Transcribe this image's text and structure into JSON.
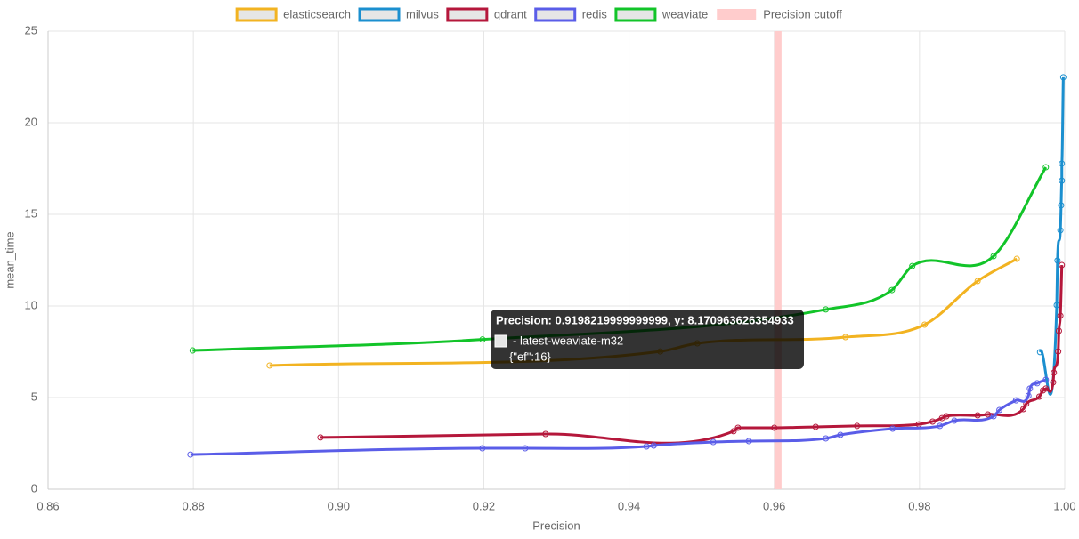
{
  "chart_data": {
    "type": "line",
    "x_label": "Precision",
    "y_label": "mean_time",
    "xlim": [
      0.86,
      1.0
    ],
    "xticks": [
      0.86,
      0.88,
      {
        "value": 0.9,
        "label": "0.90"
      },
      0.92,
      0.94,
      0.96,
      0.98,
      {
        "value": 1.0,
        "label": "1.00"
      }
    ],
    "ylim": [
      0,
      25
    ],
    "yticks": [
      0,
      5,
      10,
      15,
      20,
      25
    ],
    "grid": true,
    "legend": "top",
    "series": [
      {
        "name": "elasticsearch",
        "color": "#f2b321",
        "x": [
          0.8905,
          0.9443,
          0.9494,
          0.9698,
          0.9807,
          0.988,
          0.9934
        ],
        "values": [
          6.75,
          7.52,
          7.96,
          8.3,
          8.98,
          11.36,
          12.57
        ]
      },
      {
        "name": "milvus",
        "color": "#1b8fcf",
        "x": [
          0.9966,
          0.9989,
          0.999,
          0.9994,
          0.9995,
          0.9996,
          0.9996,
          0.9998
        ],
        "values": [
          7.48,
          10.05,
          12.48,
          14.13,
          15.49,
          16.84,
          17.77,
          22.48
        ]
      },
      {
        "name": "qdrant",
        "color": "#b5173b",
        "x": [
          0.8975,
          0.9285,
          0.9544,
          0.955,
          0.96,
          0.9657,
          0.9714,
          0.9799,
          0.9818,
          0.9831,
          0.9837,
          0.988,
          0.9894,
          0.9943,
          0.9947,
          0.9965,
          0.997,
          0.9974,
          0.9984,
          0.9985,
          0.9991,
          0.9992,
          0.9994,
          0.9996
        ],
        "values": [
          2.82,
          3.01,
          3.16,
          3.35,
          3.35,
          3.4,
          3.45,
          3.54,
          3.69,
          3.88,
          3.98,
          4.03,
          4.08,
          4.37,
          4.66,
          5.05,
          5.39,
          5.49,
          5.83,
          6.36,
          7.52,
          8.64,
          9.47,
          12.23
        ]
      },
      {
        "name": "redis",
        "color": "#5a5de8",
        "x": [
          0.8796,
          0.9198,
          0.9257,
          0.9424,
          0.9434,
          0.9516,
          0.9565,
          0.9671,
          0.9691,
          0.9763,
          0.9828,
          0.9848,
          0.9902,
          0.991,
          0.9933,
          0.995,
          0.9952,
          0.9962,
          0.9974
        ],
        "values": [
          1.89,
          2.23,
          2.23,
          2.33,
          2.38,
          2.57,
          2.62,
          2.77,
          2.96,
          3.3,
          3.45,
          3.74,
          3.98,
          4.32,
          4.85,
          5.1,
          5.49,
          5.78,
          5.97
        ]
      },
      {
        "name": "weaviate",
        "color": "#12c429",
        "x": [
          0.8799,
          0.9198219999999999,
          0.9671,
          0.9762,
          0.979,
          0.9902,
          0.9974
        ],
        "values": [
          7.57,
          8.170963626354933,
          9.81,
          10.87,
          12.18,
          12.72,
          17.57
        ]
      }
    ],
    "cutoff": {
      "name": "Precision cutoff",
      "color": "#ffcccc",
      "x": [
        0.96,
        0.961
      ]
    },
    "tooltip": {
      "title": "Precision: 0.9198219999999999, y: 8.170963626354933",
      "label": "- latest-weaviate-m32",
      "detail": "{\"ef\":16}"
    }
  }
}
